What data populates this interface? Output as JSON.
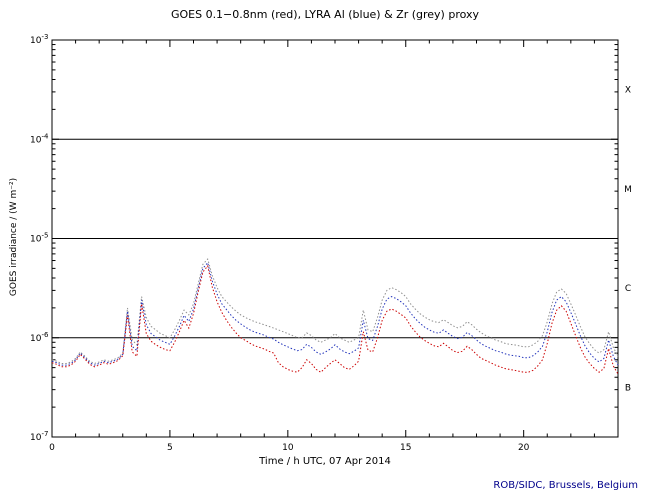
{
  "chart_data": {
    "type": "line",
    "title": "GOES 0.1−0.8nm (red), LYRA Al (blue) & Zr (grey) proxy",
    "xlabel": "Time / h UTC, 07 Apr 2014",
    "ylabel": "GOES irradiance / (W m⁻²)",
    "credit": "ROB/SIDC, Brussels, Belgium",
    "credit_color": "#00008b",
    "axis_color": "#000000",
    "xlim": [
      0,
      24
    ],
    "ylim_exp": [
      -7,
      -3
    ],
    "x_major_ticks": [
      0,
      5,
      10,
      15,
      20
    ],
    "x_minor_step": 1,
    "hline_exponents": [
      -4,
      -5,
      -6
    ],
    "flare_class_labels": [
      "X",
      "M",
      "C",
      "B"
    ],
    "legend": "none",
    "grid": false,
    "x_start": 0,
    "x_step": 0.2,
    "value_scale": 1e-06,
    "series": [
      {
        "name": "LYRA Zr proxy",
        "color": "#8f8f8f",
        "values": [
          0.6,
          0.58,
          0.55,
          0.55,
          0.57,
          0.62,
          0.72,
          0.65,
          0.58,
          0.55,
          0.57,
          0.6,
          0.58,
          0.6,
          0.63,
          0.7,
          2.0,
          0.95,
          0.85,
          2.6,
          1.6,
          1.3,
          1.2,
          1.1,
          1.05,
          1.0,
          1.2,
          1.5,
          1.9,
          1.7,
          2.2,
          3.5,
          5.5,
          6.2,
          4.2,
          3.2,
          2.6,
          2.3,
          2.05,
          1.85,
          1.7,
          1.6,
          1.52,
          1.45,
          1.4,
          1.35,
          1.3,
          1.25,
          1.2,
          1.15,
          1.1,
          1.05,
          1.0,
          1.0,
          1.12,
          1.05,
          0.95,
          0.9,
          0.95,
          1.0,
          1.1,
          1.0,
          0.95,
          0.9,
          0.95,
          1.0,
          1.9,
          1.2,
          1.15,
          1.6,
          2.4,
          3.0,
          3.2,
          3.05,
          2.85,
          2.6,
          2.2,
          1.95,
          1.75,
          1.62,
          1.52,
          1.45,
          1.42,
          1.52,
          1.42,
          1.32,
          1.26,
          1.3,
          1.45,
          1.35,
          1.22,
          1.12,
          1.05,
          1.0,
          0.95,
          0.92,
          0.88,
          0.86,
          0.85,
          0.83,
          0.81,
          0.81,
          0.85,
          0.92,
          1.05,
          1.45,
          2.2,
          2.9,
          3.1,
          2.8,
          2.2,
          1.7,
          1.3,
          1.02,
          0.87,
          0.76,
          0.7,
          0.76,
          1.15,
          0.8,
          0.65
        ]
      },
      {
        "name": "LYRA Al proxy",
        "color": "#2233bb",
        "values": [
          0.58,
          0.56,
          0.53,
          0.53,
          0.55,
          0.6,
          0.7,
          0.63,
          0.56,
          0.53,
          0.55,
          0.58,
          0.56,
          0.58,
          0.61,
          0.68,
          1.85,
          0.82,
          0.74,
          2.4,
          1.35,
          1.1,
          1.02,
          0.94,
          0.9,
          0.86,
          1.04,
          1.3,
          1.68,
          1.46,
          1.95,
          3.15,
          5.0,
          5.7,
          3.7,
          2.75,
          2.2,
          1.92,
          1.68,
          1.5,
          1.38,
          1.28,
          1.2,
          1.14,
          1.1,
          1.06,
          1.01,
          0.97,
          0.9,
          0.85,
          0.81,
          0.77,
          0.74,
          0.76,
          0.86,
          0.8,
          0.72,
          0.68,
          0.72,
          0.77,
          0.85,
          0.77,
          0.72,
          0.69,
          0.73,
          0.79,
          1.5,
          0.98,
          0.94,
          1.3,
          1.95,
          2.45,
          2.6,
          2.48,
          2.3,
          2.1,
          1.78,
          1.56,
          1.4,
          1.28,
          1.2,
          1.14,
          1.11,
          1.2,
          1.11,
          1.03,
          0.98,
          1.01,
          1.13,
          1.05,
          0.95,
          0.87,
          0.82,
          0.78,
          0.74,
          0.72,
          0.69,
          0.67,
          0.66,
          0.65,
          0.63,
          0.63,
          0.66,
          0.72,
          0.82,
          1.15,
          1.8,
          2.4,
          2.6,
          2.3,
          1.8,
          1.38,
          1.05,
          0.83,
          0.7,
          0.62,
          0.57,
          0.62,
          0.95,
          0.65,
          0.53
        ]
      },
      {
        "name": "GOES 0.1-0.8nm",
        "color": "#cc0000",
        "values": [
          0.56,
          0.54,
          0.51,
          0.51,
          0.53,
          0.58,
          0.68,
          0.61,
          0.54,
          0.51,
          0.53,
          0.56,
          0.54,
          0.56,
          0.59,
          0.66,
          1.7,
          0.72,
          0.65,
          2.2,
          1.1,
          0.92,
          0.85,
          0.8,
          0.76,
          0.74,
          0.9,
          1.15,
          1.5,
          1.25,
          1.75,
          2.9,
          4.6,
          5.3,
          3.2,
          2.3,
          1.8,
          1.5,
          1.28,
          1.12,
          1.0,
          0.94,
          0.88,
          0.83,
          0.8,
          0.77,
          0.73,
          0.7,
          0.56,
          0.51,
          0.48,
          0.46,
          0.45,
          0.5,
          0.6,
          0.55,
          0.48,
          0.45,
          0.5,
          0.55,
          0.6,
          0.55,
          0.5,
          0.48,
          0.52,
          0.58,
          1.15,
          0.75,
          0.72,
          1.0,
          1.5,
          1.85,
          1.95,
          1.85,
          1.72,
          1.58,
          1.32,
          1.15,
          1.02,
          0.94,
          0.88,
          0.83,
          0.81,
          0.88,
          0.81,
          0.74,
          0.71,
          0.73,
          0.82,
          0.76,
          0.68,
          0.62,
          0.59,
          0.56,
          0.53,
          0.51,
          0.49,
          0.48,
          0.47,
          0.46,
          0.45,
          0.45,
          0.47,
          0.52,
          0.6,
          0.88,
          1.4,
          1.9,
          2.1,
          1.85,
          1.4,
          1.05,
          0.8,
          0.64,
          0.55,
          0.49,
          0.45,
          0.49,
          0.78,
          0.52,
          0.43
        ]
      }
    ]
  }
}
